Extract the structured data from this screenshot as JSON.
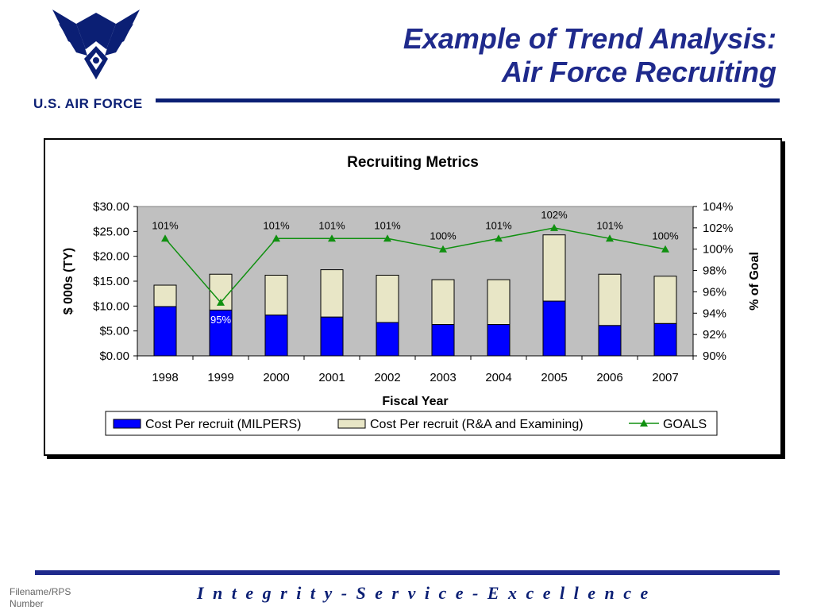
{
  "header": {
    "title_line1": "Example of Trend Analysis:",
    "title_line2": "Air Force Recruiting",
    "logo_text": "U.S. AIR FORCE",
    "logo_icon": "air-force-wings-emblem"
  },
  "footer": {
    "left_line1": "Filename/RPS",
    "left_line2": "Number",
    "motto": "I n t e g r i t y  -  S e r v i c e  -  E x c e l l e n c e"
  },
  "colors": {
    "brand_navy": "#0b1f74",
    "milpers": "#0000ff",
    "ra_examining": "#e8e6c6",
    "goals": "#109010",
    "plot_bg": "#c0c0c0"
  },
  "chart_data": {
    "type": "bar",
    "title": "Recruiting Metrics",
    "xlabel": "Fiscal Year",
    "ylabel": "$ 000s (TY)",
    "y2label": "% of Goal",
    "categories": [
      "1998",
      "1999",
      "2000",
      "2001",
      "2002",
      "2003",
      "2004",
      "2005",
      "2006",
      "2007"
    ],
    "ylim": [
      0,
      30
    ],
    "yticks": [
      "$0.00",
      "$5.00",
      "$10.00",
      "$15.00",
      "$20.00",
      "$25.00",
      "$30.00"
    ],
    "y2lim": [
      90,
      104
    ],
    "y2ticks": [
      "90%",
      "92%",
      "94%",
      "96%",
      "98%",
      "100%",
      "102%",
      "104%"
    ],
    "stacked": true,
    "series": [
      {
        "name": "Cost Per recruit (MILPERS)",
        "type": "bar",
        "values": [
          9.9,
          9.2,
          8.2,
          7.8,
          6.7,
          6.3,
          6.3,
          11.0,
          6.1,
          6.5
        ]
      },
      {
        "name": "Cost Per recruit (R&A and Examining)",
        "type": "bar",
        "values": [
          4.3,
          7.2,
          8.0,
          9.5,
          9.5,
          9.0,
          9.0,
          13.3,
          10.3,
          9.5
        ]
      },
      {
        "name": "GOALS",
        "type": "line",
        "axis": "secondary",
        "values": [
          101,
          95,
          101,
          101,
          101,
          100,
          101,
          102,
          101,
          100
        ],
        "labels": [
          "101%",
          "95%",
          "101%",
          "101%",
          "101%",
          "100%",
          "101%",
          "102%",
          "101%",
          "100%"
        ]
      }
    ],
    "legend_position": "bottom",
    "grid": false
  }
}
